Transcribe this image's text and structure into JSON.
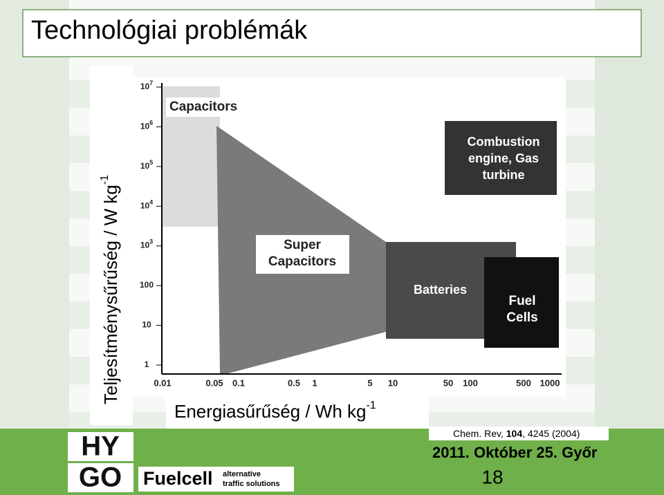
{
  "header": {
    "title": "Technológiai problémák"
  },
  "plot": {
    "y_label": {
      "text": "Teljesítménysűrűség / W kg",
      "sup": "-1"
    },
    "x_label": {
      "text": "Energiasűrűség / Wh kg",
      "sup": "-1"
    },
    "y_ticks": [
      {
        "base": "10",
        "exp": "7"
      },
      {
        "base": "10",
        "exp": "6"
      },
      {
        "base": "10",
        "exp": "5"
      },
      {
        "base": "10",
        "exp": "4"
      },
      {
        "base": "10",
        "exp": "3"
      },
      {
        "base": "100",
        "exp": ""
      },
      {
        "base": "10",
        "exp": ""
      },
      {
        "base": "1",
        "exp": ""
      }
    ],
    "x_ticks": [
      "0.01",
      "0.05",
      "0.1",
      "0.5",
      "1",
      "5",
      "10",
      "50",
      "100",
      "500",
      "1000"
    ],
    "regions": {
      "capacitors": "Capacitors",
      "supercapacitors": [
        "Super",
        "Capacitors"
      ],
      "batteries": "Batteries",
      "fuel_cells": [
        "Fuel",
        "Cells"
      ],
      "combustion": [
        "Combustion",
        "engine, Gas",
        "turbine"
      ]
    }
  },
  "footer": {
    "citation": {
      "before": "Chem. Rev, ",
      "bold": "104",
      "after": ", 4245 (2004)"
    },
    "date": "2011. Október 25. Győr",
    "page": "18",
    "logo": {
      "hy": "HY",
      "go": "GO",
      "brand": "Fuelcell",
      "tagline": [
        "alternative",
        "traffic solutions"
      ]
    }
  }
}
